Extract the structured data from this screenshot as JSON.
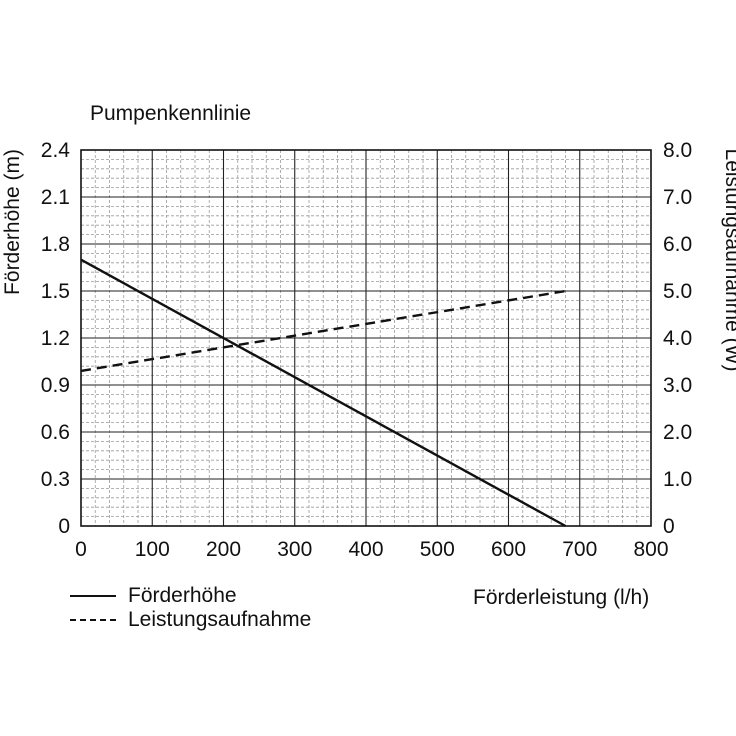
{
  "chart_data": {
    "type": "line",
    "title": "Pumpenkennlinie",
    "xlabel": "Förderleistung (l/h)",
    "ylabel": "Förderhöhe (m)",
    "y2label": "Leistungsaufnahme (W)",
    "xlim": [
      0,
      800
    ],
    "ylim": [
      0,
      2.4
    ],
    "y2lim": [
      0,
      8.0
    ],
    "grid": true,
    "legend_position": "bottom-left",
    "x_ticks": [
      "0",
      "100",
      "200",
      "300",
      "400",
      "500",
      "600",
      "700",
      "800"
    ],
    "y_ticks": [
      "0",
      "0.3",
      "0.6",
      "0.9",
      "1.2",
      "1.5",
      "1.8",
      "2.1",
      "2.4"
    ],
    "y2_ticks": [
      "0",
      "1.0",
      "2.0",
      "3.0",
      "4.0",
      "5.0",
      "6.0",
      "7.0",
      "8.0"
    ],
    "series": [
      {
        "name": "Förderhöhe",
        "axis": "left",
        "style": "solid",
        "x": [
          0,
          680
        ],
        "y": [
          1.7,
          0
        ]
      },
      {
        "name": "Leistungsaufnahme",
        "axis": "right",
        "style": "dashed",
        "x": [
          0,
          680
        ],
        "y": [
          3.3,
          5.0
        ]
      }
    ]
  }
}
